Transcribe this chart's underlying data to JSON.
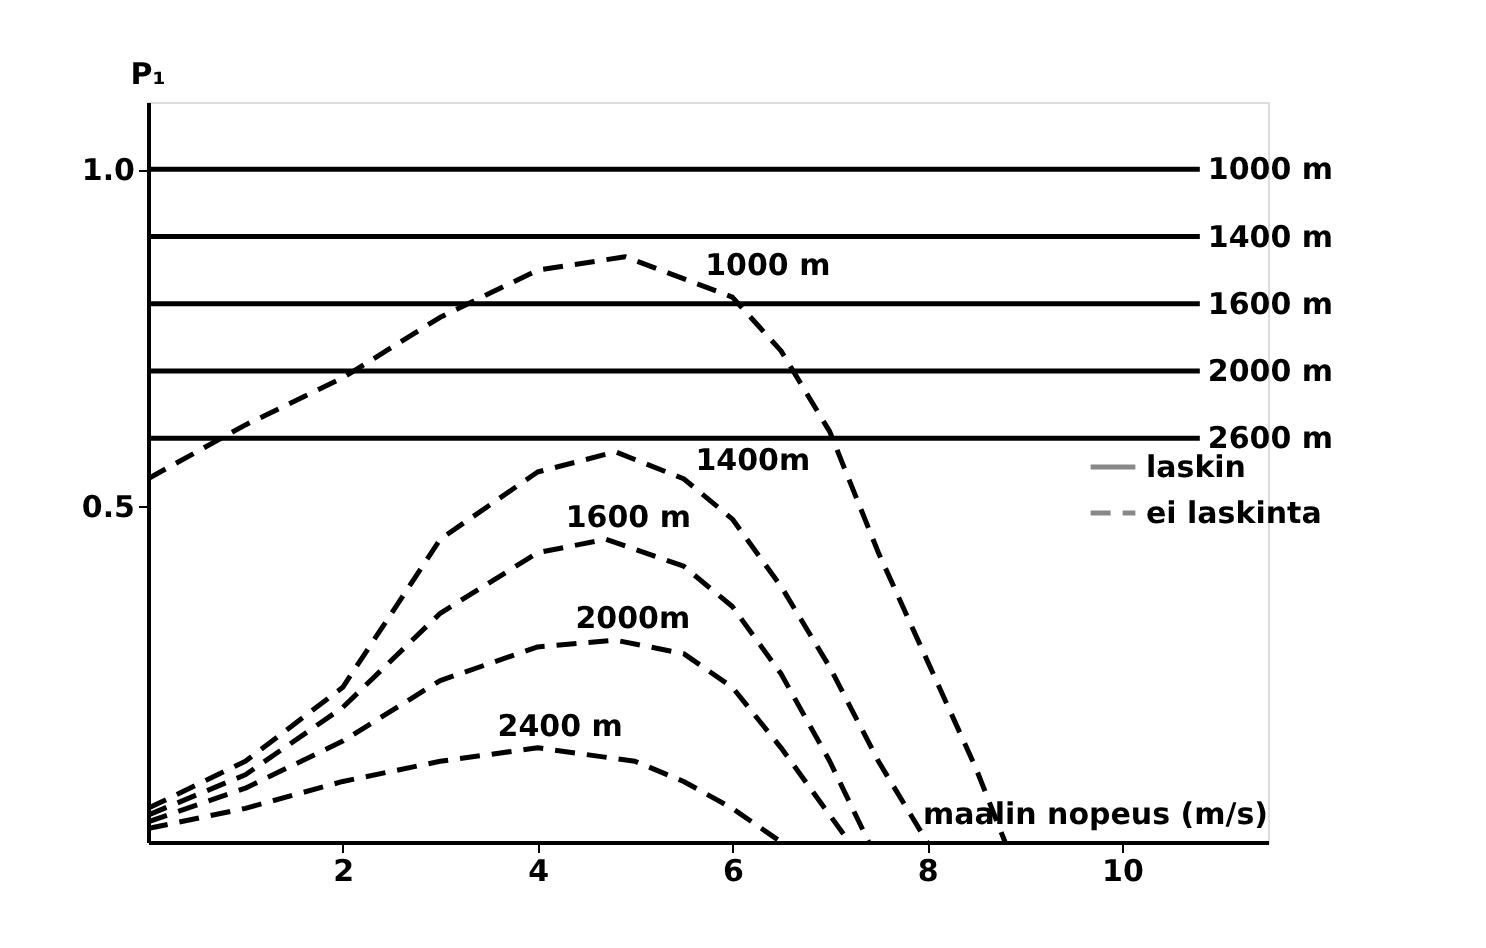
{
  "chart_data": {
    "type": "line",
    "xlabel": "maalin nopeus (m/s)",
    "ylabel": "P₁",
    "xlim": [
      0,
      11.5
    ],
    "xticks": [
      2,
      4,
      6,
      8,
      10
    ],
    "ylim": [
      0,
      1.1
    ],
    "yticks": [
      0.5,
      {
        "value": 1.0,
        "label": "1.0"
      }
    ],
    "legend": "right",
    "grid": false,
    "marker": "none",
    "annotations": [
      "laskin",
      "ei laskinta"
    ],
    "series": [
      {
        "name": "1000 m",
        "color": "#000000",
        "line_style": "solid",
        "x": [
          0,
          10.8
        ],
        "values": [
          1.0,
          1.0
        ]
      },
      {
        "name": "1400 m",
        "color": "#000000",
        "line_style": "solid",
        "x": [
          0,
          10.8
        ],
        "values": [
          0.9,
          0.9
        ]
      },
      {
        "name": "1600 m",
        "color": "#000000",
        "line_style": "solid",
        "x": [
          0,
          10.8
        ],
        "values": [
          0.8,
          0.8
        ]
      },
      {
        "name": "2000 m",
        "color": "#000000",
        "line_style": "solid",
        "x": [
          0,
          10.8
        ],
        "values": [
          0.7,
          0.7
        ]
      },
      {
        "name": "2600 m",
        "color": "#000000",
        "line_style": "solid",
        "x": [
          0,
          10.8
        ],
        "values": [
          0.6,
          0.6
        ]
      },
      {
        "name": "1000 m",
        "color": "#000000",
        "line_style": "dashed",
        "x": [
          0,
          1,
          2,
          3,
          4,
          4.9,
          6,
          6.5,
          7,
          7.5,
          8,
          8.5,
          8.8
        ],
        "values": [
          0.54,
          0.62,
          0.69,
          0.78,
          0.85,
          0.87,
          0.81,
          0.73,
          0.61,
          0.43,
          0.27,
          0.11,
          0
        ]
      },
      {
        "name": "1400m",
        "color": "#000000",
        "line_style": "dashed",
        "x": [
          0,
          1,
          2,
          3,
          4,
          4.8,
          5.5,
          6,
          6.5,
          7,
          7.5,
          8
        ],
        "values": [
          0.05,
          0.12,
          0.23,
          0.45,
          0.55,
          0.58,
          0.54,
          0.48,
          0.38,
          0.26,
          0.12,
          0
        ]
      },
      {
        "name": "1600 m",
        "color": "#000000",
        "line_style": "dashed",
        "x": [
          0,
          1,
          2,
          3,
          4,
          4.7,
          5.5,
          6,
          6.5,
          7,
          7.4
        ],
        "values": [
          0.04,
          0.1,
          0.2,
          0.34,
          0.43,
          0.45,
          0.41,
          0.35,
          0.25,
          0.12,
          0
        ]
      },
      {
        "name": "2000m",
        "color": "#000000",
        "line_style": "dashed",
        "x": [
          0,
          1,
          2,
          3,
          4,
          4.8,
          5.5,
          6,
          6.5,
          7,
          7.2
        ],
        "values": [
          0.03,
          0.08,
          0.15,
          0.24,
          0.29,
          0.3,
          0.28,
          0.23,
          0.14,
          0.04,
          0
        ]
      },
      {
        "name": "2400 m",
        "color": "#000000",
        "line_style": "dashed",
        "x": [
          0,
          1,
          2,
          3,
          4,
          5,
          5.5,
          6,
          6.5
        ],
        "values": [
          0.02,
          0.05,
          0.09,
          0.12,
          0.14,
          0.12,
          0.09,
          0.05,
          0
        ]
      }
    ]
  }
}
